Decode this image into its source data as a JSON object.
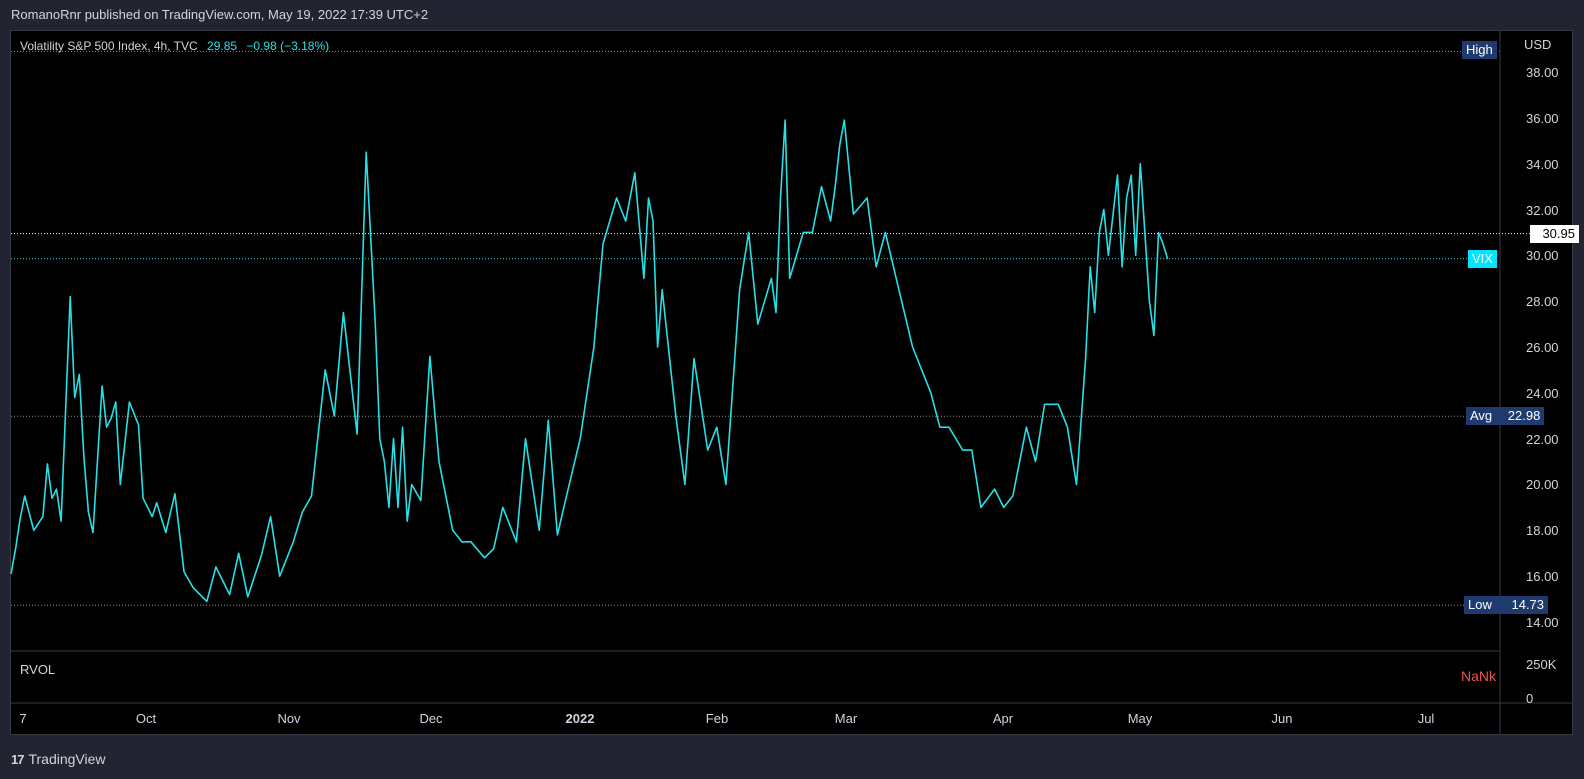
{
  "header": {
    "attribution": "RomanoRnr published on TradingView.com, May 19, 2022 17:39 UTC+2"
  },
  "legend": {
    "title": "Volatility S&P 500 Index, 4h, TVC",
    "last": "29.85",
    "change": "−0.98 (−3.18%)"
  },
  "axis": {
    "currency": "USD",
    "y_ticks": [
      "38.00",
      "36.00",
      "34.00",
      "32.00",
      "30.00",
      "28.00",
      "26.00",
      "24.00",
      "22.00",
      "20.00",
      "18.00",
      "16.00",
      "14.00"
    ],
    "x_ticks": [
      "7",
      "Oct",
      "Nov",
      "Dec",
      "2022",
      "Feb",
      "Mar",
      "Apr",
      "May",
      "Jun",
      "Jul"
    ],
    "vol_ticks": [
      "250K",
      "0"
    ]
  },
  "markers": {
    "high_label": "High",
    "current_value": "30.95",
    "series_label": "VIX",
    "avg_label": "Avg",
    "avg_value": "22.98",
    "low_label": "Low",
    "low_value": "14.73"
  },
  "volume_pane": {
    "label": "RVOL",
    "value": "NaNk"
  },
  "footer": {
    "brand": "TradingView",
    "logo": "17"
  },
  "colors": {
    "line": "#26e0e6",
    "background": "#000000",
    "page": "#222531",
    "tag": "#1e3a6e",
    "negative": "#f05350"
  },
  "chart_data": {
    "type": "line",
    "title": "Volatility S&P 500 Index, 4h, TVC",
    "ylim": [
      13.5,
      39.5
    ],
    "x_domain": [
      "2021-09-07",
      "2022-07-31"
    ],
    "ref_lines": {
      "high": 38.9,
      "current": 30.95,
      "last": 29.85,
      "avg": 22.98,
      "low": 14.73
    },
    "series": [
      {
        "name": "VIX",
        "x": [
          "2021-09-07",
          "2021-09-08",
          "2021-09-09",
          "2021-09-10",
          "2021-09-12",
          "2021-09-14",
          "2021-09-15",
          "2021-09-16",
          "2021-09-17",
          "2021-09-18",
          "2021-09-20",
          "2021-09-21",
          "2021-09-22",
          "2021-09-23",
          "2021-09-24",
          "2021-09-25",
          "2021-09-27",
          "2021-09-28",
          "2021-09-29",
          "2021-09-30",
          "2021-10-01",
          "2021-10-03",
          "2021-10-05",
          "2021-10-06",
          "2021-10-08",
          "2021-10-09",
          "2021-10-11",
          "2021-10-13",
          "2021-10-15",
          "2021-10-17",
          "2021-10-20",
          "2021-10-22",
          "2021-10-25",
          "2021-10-27",
          "2021-10-29",
          "2021-11-01",
          "2021-11-03",
          "2021-11-05",
          "2021-11-08",
          "2021-11-10",
          "2021-11-12",
          "2021-11-15",
          "2021-11-17",
          "2021-11-19",
          "2021-11-22",
          "2021-11-24",
          "2021-11-26",
          "2021-11-27",
          "2021-11-28",
          "2021-11-29",
          "2021-11-30",
          "2021-12-01",
          "2021-12-02",
          "2021-12-03",
          "2021-12-04",
          "2021-12-06",
          "2021-12-08",
          "2021-12-10",
          "2021-12-13",
          "2021-12-15",
          "2021-12-17",
          "2021-12-20",
          "2021-12-22",
          "2021-12-24",
          "2021-12-27",
          "2021-12-29",
          "2022-01-01",
          "2022-01-03",
          "2022-01-05",
          "2022-01-07",
          "2022-01-10",
          "2022-01-13",
          "2022-01-15",
          "2022-01-18",
          "2022-01-20",
          "2022-01-22",
          "2022-01-24",
          "2022-01-25",
          "2022-01-26",
          "2022-01-27",
          "2022-01-28",
          "2022-01-31",
          "2022-02-02",
          "2022-02-04",
          "2022-02-07",
          "2022-02-09",
          "2022-02-11",
          "2022-02-14",
          "2022-02-16",
          "2022-02-18",
          "2022-02-21",
          "2022-02-22",
          "2022-02-23",
          "2022-02-24",
          "2022-02-25",
          "2022-02-28",
          "2022-03-02",
          "2022-03-04",
          "2022-03-06",
          "2022-03-07",
          "2022-03-08",
          "2022-03-09",
          "2022-03-11",
          "2022-03-14",
          "2022-03-16",
          "2022-03-18",
          "2022-03-21",
          "2022-03-24",
          "2022-03-28",
          "2022-03-30",
          "2022-04-01",
          "2022-04-04",
          "2022-04-06",
          "2022-04-08",
          "2022-04-11",
          "2022-04-13",
          "2022-04-15",
          "2022-04-18",
          "2022-04-20",
          "2022-04-22",
          "2022-04-25",
          "2022-04-27",
          "2022-04-29",
          "2022-05-01",
          "2022-05-02",
          "2022-05-03",
          "2022-05-04",
          "2022-05-05",
          "2022-05-06",
          "2022-05-08",
          "2022-05-09",
          "2022-05-10",
          "2022-05-11",
          "2022-05-12",
          "2022-05-13",
          "2022-05-15",
          "2022-05-16",
          "2022-05-17",
          "2022-05-18",
          "2022-05-19"
        ],
        "values": [
          16.1,
          17.2,
          18.5,
          19.5,
          18.0,
          18.6,
          20.9,
          19.4,
          19.8,
          18.4,
          28.2,
          23.8,
          24.8,
          21.2,
          18.8,
          17.9,
          24.3,
          22.5,
          22.9,
          23.6,
          20.0,
          23.6,
          22.6,
          19.4,
          18.6,
          19.2,
          17.9,
          19.6,
          16.2,
          15.5,
          14.9,
          16.4,
          15.2,
          17.0,
          15.1,
          16.9,
          18.6,
          16.0,
          17.5,
          18.8,
          19.5,
          25.0,
          23.0,
          27.5,
          22.2,
          34.5,
          27.0,
          22.0,
          21.0,
          19.0,
          22.0,
          19.0,
          22.5,
          18.4,
          20.0,
          19.3,
          25.6,
          21.0,
          18.0,
          17.5,
          17.5,
          16.8,
          17.2,
          19.0,
          17.5,
          22.0,
          18.0,
          22.8,
          17.8,
          19.5,
          22.0,
          26.0,
          30.5,
          32.5,
          31.5,
          33.6,
          29.0,
          32.5,
          31.5,
          26.0,
          28.5,
          23.0,
          20.0,
          25.5,
          21.5,
          22.5,
          20.0,
          28.5,
          31.0,
          27.0,
          29.0,
          27.5,
          32.5,
          35.9,
          29.0,
          31.0,
          31.0,
          33.0,
          31.5,
          33.0,
          34.8,
          35.9,
          31.8,
          32.5,
          29.5,
          31.0,
          28.5,
          26.0,
          24.0,
          22.5,
          22.5,
          21.5,
          21.5,
          19.0,
          19.8,
          19.0,
          19.5,
          22.5,
          21.0,
          23.5,
          23.5,
          22.5,
          20.0,
          25.5,
          29.5,
          27.5,
          31.0,
          32.0,
          30.0,
          33.5,
          29.5,
          32.5,
          33.5,
          30.0,
          34.0,
          28.0,
          26.5,
          31.0,
          30.5,
          29.85
        ]
      }
    ]
  }
}
